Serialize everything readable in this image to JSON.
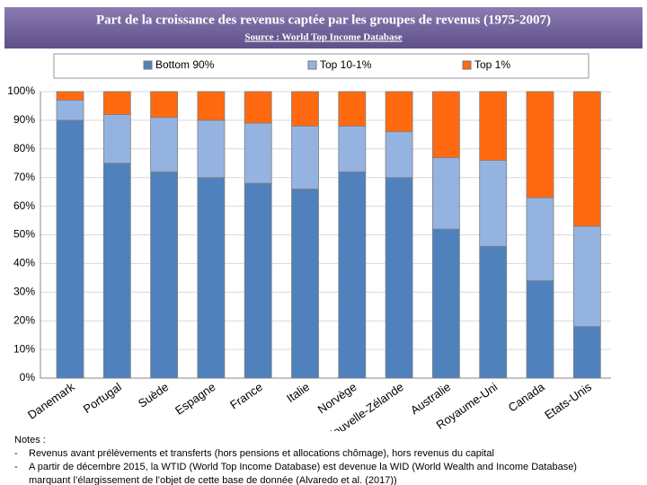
{
  "chart_data": {
    "type": "stacked_bar",
    "title": "Part de la croissance des revenus captée par les groupes de revenus (1975-2007)",
    "subtitle": "Source : World Top Income Database",
    "categories": [
      "Danemark",
      "Portugal",
      "Suède",
      "Espagne",
      "France",
      "Italie",
      "Norvège",
      "Nouvelle-Zélande",
      "Australie",
      "Royaume-Uni",
      "Canada",
      "Etats-Unis"
    ],
    "series": [
      {
        "name": "Bottom 90%",
        "color": "#4f81bd",
        "values": [
          90,
          75,
          72,
          70,
          68,
          66,
          72,
          70,
          52,
          46,
          34,
          18
        ]
      },
      {
        "name": "Top 10-1%",
        "color": "#95b3e0",
        "values": [
          7,
          17,
          19,
          20,
          21,
          22,
          16,
          16,
          25,
          30,
          29,
          35
        ]
      },
      {
        "name": "Top 1%",
        "color": "#ff6a10",
        "values": [
          3,
          8,
          9,
          10,
          11,
          12,
          12,
          14,
          23,
          24,
          37,
          47
        ]
      }
    ],
    "ylim": [
      0,
      100
    ],
    "yticks": [
      {
        "value": 0,
        "label": "0%"
      },
      {
        "value": 10,
        "label": "10%"
      },
      {
        "value": 20,
        "label": "20%"
      },
      {
        "value": 30,
        "label": "30%"
      },
      {
        "value": 40,
        "label": "40%"
      },
      {
        "value": 50,
        "label": "50%"
      },
      {
        "value": 60,
        "label": "60%"
      },
      {
        "value": 70,
        "label": "70%"
      },
      {
        "value": 80,
        "label": "80%"
      },
      {
        "value": 90,
        "label": "90%"
      },
      {
        "value": 100,
        "label": "100%"
      }
    ],
    "grid": true,
    "legend": "top"
  },
  "notes": {
    "title": "Notes :",
    "items": [
      "Revenus avant prélèvements et transferts (hors pensions et allocations chômage), hors revenus du capital",
      "A partir de décembre 2015, la WTID (World Top Income Database) est devenue la WID (World Wealth and Income Database) marquant l’élargissement de l’objet de cette base de donnée (Alvaredo et al. (2017))"
    ]
  }
}
